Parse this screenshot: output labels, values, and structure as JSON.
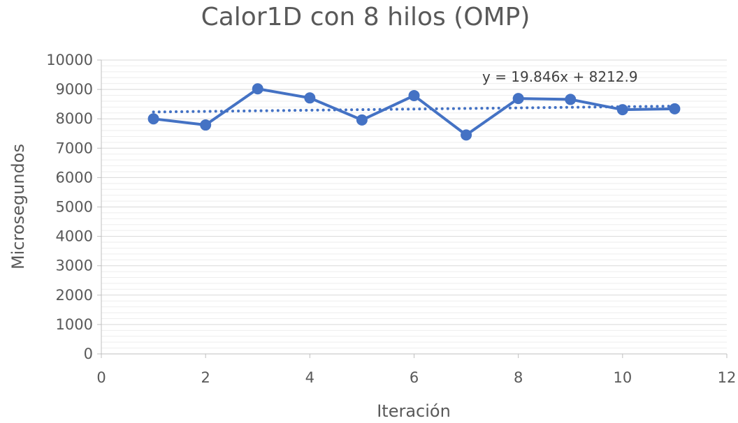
{
  "chart_data": {
    "type": "scatter",
    "title": "Calor1D con 8 hilos (OMP)",
    "xlabel": "Iteración",
    "ylabel": "Microsegundos",
    "xlim": [
      0,
      12
    ],
    "ylim": [
      0,
      10000
    ],
    "x_ticks": [
      0,
      2,
      4,
      6,
      8,
      10,
      12
    ],
    "y_ticks": [
      0,
      1000,
      2000,
      3000,
      4000,
      5000,
      6000,
      7000,
      8000,
      9000,
      10000
    ],
    "grid": true,
    "series": [
      {
        "color": "#4472C4",
        "x": [
          1,
          2,
          3,
          4,
          5,
          6,
          7,
          8,
          9,
          10,
          11
        ],
        "y": [
          8000,
          7790,
          9020,
          8710,
          7960,
          8790,
          7450,
          8690,
          8660,
          8310,
          8340
        ]
      }
    ],
    "trendline": {
      "type": "linear",
      "slope": 19.846,
      "intercept": 8212.9,
      "x_range": [
        1,
        11
      ],
      "color": "#4472C4",
      "label": "y = 19.846x + 8212.9"
    }
  }
}
